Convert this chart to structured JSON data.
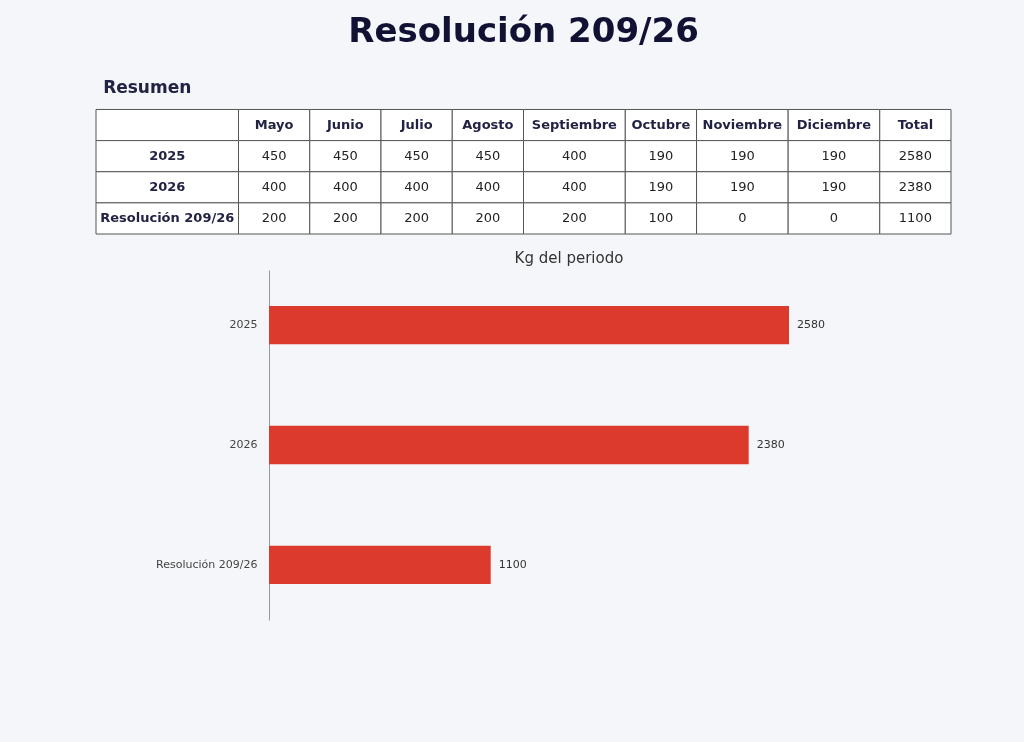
{
  "chart_data": [
    {
      "type": "other",
      "title": "Resolución 209/26",
      "subtitle": "Resumen",
      "data_labels": true,
      "categories": [
        "Mayo",
        "Junio",
        "Julio",
        "Agosto",
        "Septiembre",
        "Octubre",
        "Noviembre",
        "Diciembre",
        "Total"
      ],
      "series": [
        {
          "name": "2025",
          "values": [
            450,
            450,
            450,
            450,
            400,
            190,
            190,
            190,
            2580
          ]
        },
        {
          "name": "2026",
          "values": [
            400,
            400,
            400,
            400,
            400,
            190,
            190,
            190,
            2380
          ]
        },
        {
          "name": "Resolución 209/26",
          "values": [
            200,
            200,
            200,
            200,
            200,
            100,
            0,
            0,
            1100
          ]
        }
      ]
    },
    {
      "type": "bar",
      "orientation": "horizontal",
      "title": "Kg del periodo",
      "data_labels": true,
      "categories": [
        "2025",
        "2026",
        "Resolución 209/26"
      ],
      "values": [
        2580,
        2380,
        1100
      ],
      "color": "#dc3a2c"
    }
  ]
}
